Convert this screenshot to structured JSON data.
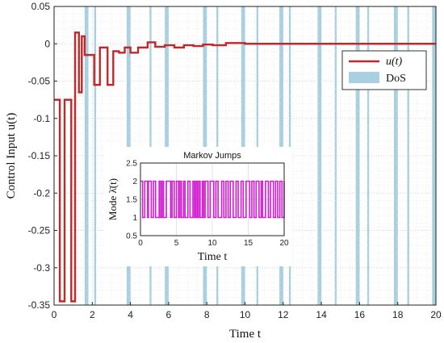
{
  "chart_data": [
    {
      "type": "line",
      "xlabel": "Time t",
      "ylabel": "Control Input u(t)",
      "xlim": [
        0,
        20
      ],
      "ylim": [
        -0.35,
        0.05
      ],
      "xticks": [
        "0",
        "2",
        "4",
        "6",
        "8",
        "10",
        "12",
        "14",
        "16",
        "18",
        "20"
      ],
      "yticks": [
        "0.05",
        "0",
        "-0.05",
        "-0.1",
        "-0.15",
        "-0.2",
        "-0.25",
        "-0.3",
        "-0.35"
      ],
      "grid": true,
      "legend_position": "top-right",
      "legend": {
        "line_label": "u(t)",
        "area_label": "DoS"
      },
      "dos_intervals": [
        [
          1.6,
          1.8
        ],
        [
          2.1,
          2.2
        ],
        [
          3.8,
          4.0
        ],
        [
          5.0,
          5.1
        ],
        [
          5.8,
          6.0
        ],
        [
          7.8,
          8.0
        ],
        [
          8.5,
          8.6
        ],
        [
          9.8,
          10.0
        ],
        [
          10.6,
          10.7
        ],
        [
          11.8,
          12.0
        ],
        [
          12.3,
          12.4
        ],
        [
          13.8,
          14.0
        ],
        [
          14.7,
          14.8
        ],
        [
          15.8,
          16.0
        ],
        [
          16.4,
          16.5
        ],
        [
          17.8,
          18.0
        ],
        [
          18.5,
          18.6
        ],
        [
          19.8,
          20.0
        ]
      ],
      "series": [
        {
          "name": "u(t)",
          "color": "#c0282a",
          "x": [
            0,
            0.3,
            0.3,
            0.55,
            0.55,
            0.9,
            0.9,
            1.1,
            1.1,
            1.3,
            1.3,
            1.45,
            1.45,
            1.6,
            1.6,
            2.1,
            2.1,
            2.4,
            2.4,
            2.8,
            2.8,
            3.1,
            3.1,
            3.4,
            3.4,
            3.7,
            3.7,
            4.0,
            4.0,
            4.4,
            4.4,
            4.9,
            4.9,
            5.3,
            5.3,
            5.8,
            5.8,
            6.3,
            6.3,
            6.8,
            6.8,
            7.3,
            7.3,
            7.8,
            7.8,
            8.3,
            8.3,
            9.0,
            9.0,
            10.0,
            10.0,
            20
          ],
          "y": [
            -0.075,
            -0.075,
            -0.345,
            -0.345,
            -0.075,
            -0.075,
            -0.345,
            -0.345,
            0.015,
            0.015,
            -0.065,
            -0.065,
            0.01,
            0.01,
            -0.015,
            -0.015,
            -0.055,
            -0.055,
            -0.005,
            -0.005,
            -0.055,
            -0.055,
            -0.01,
            -0.01,
            -0.012,
            -0.012,
            -0.005,
            -0.005,
            -0.012,
            -0.012,
            -0.005,
            -0.005,
            0.002,
            0.002,
            -0.004,
            -0.004,
            -0.002,
            -0.002,
            -0.005,
            -0.005,
            -0.002,
            -0.002,
            -0.003,
            -0.003,
            -0.001,
            -0.001,
            -0.002,
            -0.002,
            0.001,
            0.001,
            0,
            0
          ]
        }
      ]
    },
    {
      "type": "line",
      "title": "Markov Jumps",
      "xlabel": "Time t",
      "ylabel": "Mode λ̄(t)",
      "xlim": [
        0,
        20
      ],
      "ylim": [
        0.5,
        2.5
      ],
      "xticks": [
        "0",
        "5",
        "10",
        "15",
        "20"
      ],
      "yticks": [
        "2.5",
        "2",
        "1.5",
        "1",
        "0.5"
      ],
      "grid": true,
      "series": [
        {
          "name": "mode",
          "color": "#d11ad1",
          "x": [
            0,
            0.3,
            0.6,
            1.0,
            1.1,
            1.5,
            1.8,
            2.1,
            2.6,
            2.8,
            3.0,
            3.2,
            3.6,
            4.2,
            4.4,
            4.7,
            5.0,
            5.3,
            5.5,
            5.7,
            6.0,
            6.2,
            6.6,
            6.9,
            7.3,
            7.5,
            7.7,
            7.9,
            8.1,
            8.3,
            8.6,
            8.8,
            9.0,
            9.4,
            9.7,
            10.2,
            10.5,
            10.8,
            11.3,
            11.6,
            11.9,
            12.2,
            12.5,
            12.9,
            13.3,
            13.6,
            14.0,
            14.3,
            14.7,
            15.2,
            15.5,
            15.8,
            16.1,
            16.5,
            16.8,
            17.0,
            17.4,
            17.8,
            18.1,
            18.5,
            18.8,
            19.1,
            19.4,
            19.7,
            20
          ],
          "y": [
            2,
            1,
            2,
            1,
            2,
            1,
            2,
            1,
            2,
            1,
            2,
            1,
            2,
            1,
            2,
            1,
            2,
            1,
            2,
            1,
            2,
            1,
            2,
            1,
            2,
            1,
            2,
            1,
            2,
            1,
            2,
            1,
            2,
            1,
            2,
            1,
            2,
            1,
            2,
            1,
            2,
            1,
            2,
            1,
            2,
            1,
            2,
            1,
            2,
            1,
            2,
            1,
            2,
            1,
            2,
            1,
            2,
            1,
            2,
            1,
            2,
            1,
            2,
            1,
            2
          ]
        }
      ]
    }
  ]
}
